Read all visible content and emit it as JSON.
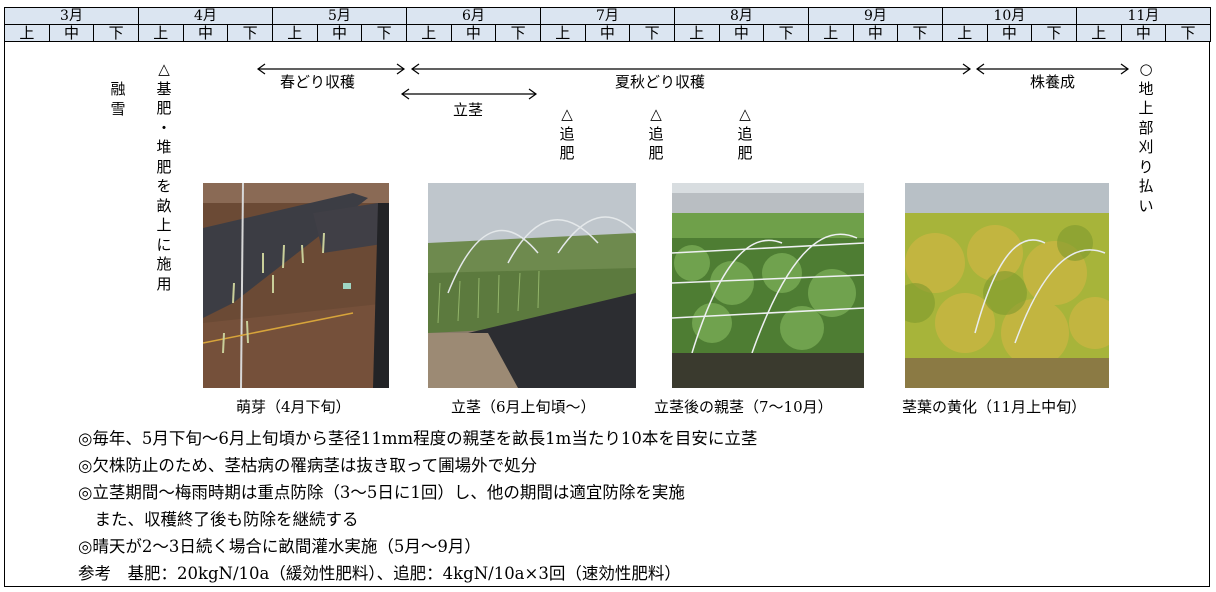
{
  "months": [
    "3月",
    "4月",
    "5月",
    "6月",
    "7月",
    "8月",
    "9月",
    "10月",
    "11月"
  ],
  "dekads": [
    "上",
    "中",
    "下"
  ],
  "stages": {
    "snowmelt": "融雪",
    "basal": "△基肥・堆肥を畝上に施用",
    "spring_harvest": "春どり収穫",
    "summer_harvest": "夏秋どり収穫",
    "stand_up": "立茎",
    "topdress1": "△追肥",
    "topdress2": "△追肥",
    "topdress3": "△追肥",
    "rootstock": "株養成",
    "cutting": "○地上部刈り払い"
  },
  "photos": [
    {
      "name": "sprouting",
      "caption": "萌芽（4月下旬）"
    },
    {
      "name": "stand-stems",
      "caption": "立茎（6月上旬頃～）"
    },
    {
      "name": "mother-stems",
      "caption": "立茎後の親茎（7～10月）"
    },
    {
      "name": "yellowing",
      "caption": "茎葉の黄化（11月上中旬）"
    }
  ],
  "notes": [
    "◎毎年、5月下旬～6月上旬頃から茎径11mm程度の親茎を畝長1m当たり10本を目安に立茎",
    "◎欠株防止のため、茎枯病の罹病茎は抜き取って圃場外で処分",
    "◎立茎期間～梅雨時期は重点防除（3～5日に1回）し、他の期間は適宜防除を実施",
    "　また、収穫終了後も防除を継続する",
    "◎晴天が2～3日続く場合に畝間灌水実施（5月～9月）",
    "参考　基肥：20kgN/10a（緩効性肥料）、追肥：4kgN/10a×3回（速効性肥料）"
  ]
}
